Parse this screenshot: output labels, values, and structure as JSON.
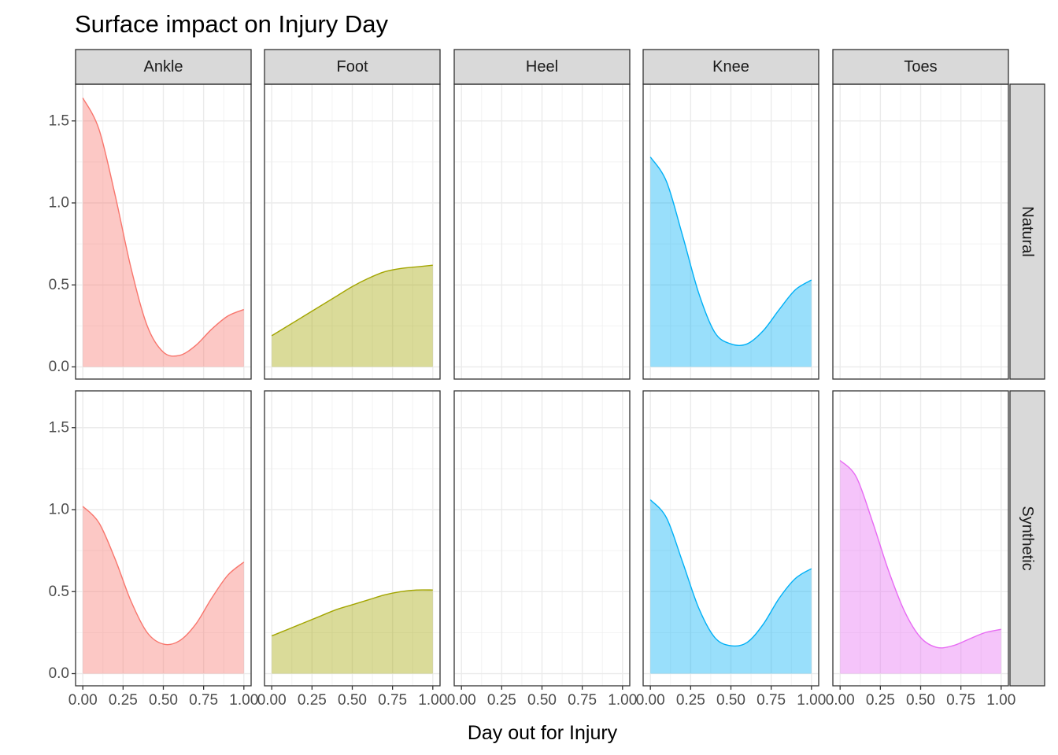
{
  "chart_data": {
    "type": "area",
    "title": "Surface impact on Injury Day",
    "xlabel": "Day out for Injury",
    "ylabel": "",
    "xlim": [
      0,
      1
    ],
    "ylim": [
      0,
      1.65
    ],
    "xticks": [
      "0.00",
      "0.25",
      "0.50",
      "0.75",
      "1.00"
    ],
    "yticks": [
      "0.0",
      "0.5",
      "1.0",
      "1.5"
    ],
    "grid": true,
    "legend": "none",
    "columns": [
      "Ankle",
      "Foot",
      "Heel",
      "Knee",
      "Toes"
    ],
    "rows": [
      "Natural",
      "Synthetic"
    ],
    "colors": {
      "Ankle": "#F8766D",
      "Foot": "#A3A500",
      "Heel": "#00BF7D",
      "Knee": "#00B0F6",
      "Toes": "#E76BF3"
    },
    "panels": [
      {
        "row": "Natural",
        "col": "Ankle",
        "x": [
          0,
          0.1,
          0.2,
          0.3,
          0.4,
          0.5,
          0.6,
          0.7,
          0.8,
          0.9,
          1.0
        ],
        "y": [
          1.64,
          1.45,
          1.05,
          0.6,
          0.25,
          0.09,
          0.07,
          0.13,
          0.23,
          0.31,
          0.35
        ]
      },
      {
        "row": "Natural",
        "col": "Foot",
        "x": [
          0,
          0.1,
          0.2,
          0.3,
          0.4,
          0.5,
          0.6,
          0.7,
          0.8,
          0.9,
          1.0
        ],
        "y": [
          0.19,
          0.25,
          0.31,
          0.37,
          0.43,
          0.49,
          0.54,
          0.58,
          0.6,
          0.61,
          0.62
        ]
      },
      {
        "row": "Natural",
        "col": "Heel",
        "x": [],
        "y": []
      },
      {
        "row": "Natural",
        "col": "Knee",
        "x": [
          0,
          0.1,
          0.2,
          0.3,
          0.4,
          0.5,
          0.6,
          0.7,
          0.8,
          0.9,
          1.0
        ],
        "y": [
          1.28,
          1.13,
          0.8,
          0.45,
          0.21,
          0.14,
          0.14,
          0.22,
          0.35,
          0.47,
          0.53
        ]
      },
      {
        "row": "Natural",
        "col": "Toes",
        "x": [],
        "y": []
      },
      {
        "row": "Synthetic",
        "col": "Ankle",
        "x": [
          0,
          0.1,
          0.2,
          0.3,
          0.4,
          0.5,
          0.6,
          0.7,
          0.8,
          0.9,
          1.0
        ],
        "y": [
          1.02,
          0.92,
          0.7,
          0.44,
          0.25,
          0.18,
          0.2,
          0.3,
          0.46,
          0.6,
          0.68
        ]
      },
      {
        "row": "Synthetic",
        "col": "Foot",
        "x": [
          0,
          0.1,
          0.2,
          0.3,
          0.4,
          0.5,
          0.6,
          0.7,
          0.8,
          0.9,
          1.0
        ],
        "y": [
          0.23,
          0.27,
          0.31,
          0.35,
          0.39,
          0.42,
          0.45,
          0.48,
          0.5,
          0.51,
          0.51
        ]
      },
      {
        "row": "Synthetic",
        "col": "Heel",
        "x": [],
        "y": []
      },
      {
        "row": "Synthetic",
        "col": "Knee",
        "x": [
          0,
          0.1,
          0.2,
          0.3,
          0.4,
          0.5,
          0.6,
          0.7,
          0.8,
          0.9,
          1.0
        ],
        "y": [
          1.06,
          0.95,
          0.68,
          0.4,
          0.22,
          0.17,
          0.19,
          0.3,
          0.46,
          0.58,
          0.64
        ]
      },
      {
        "row": "Synthetic",
        "col": "Toes",
        "x": [
          0,
          0.1,
          0.2,
          0.3,
          0.4,
          0.5,
          0.6,
          0.7,
          0.8,
          0.9,
          1.0
        ],
        "y": [
          1.3,
          1.2,
          0.93,
          0.63,
          0.38,
          0.22,
          0.16,
          0.17,
          0.21,
          0.25,
          0.27
        ]
      }
    ]
  }
}
